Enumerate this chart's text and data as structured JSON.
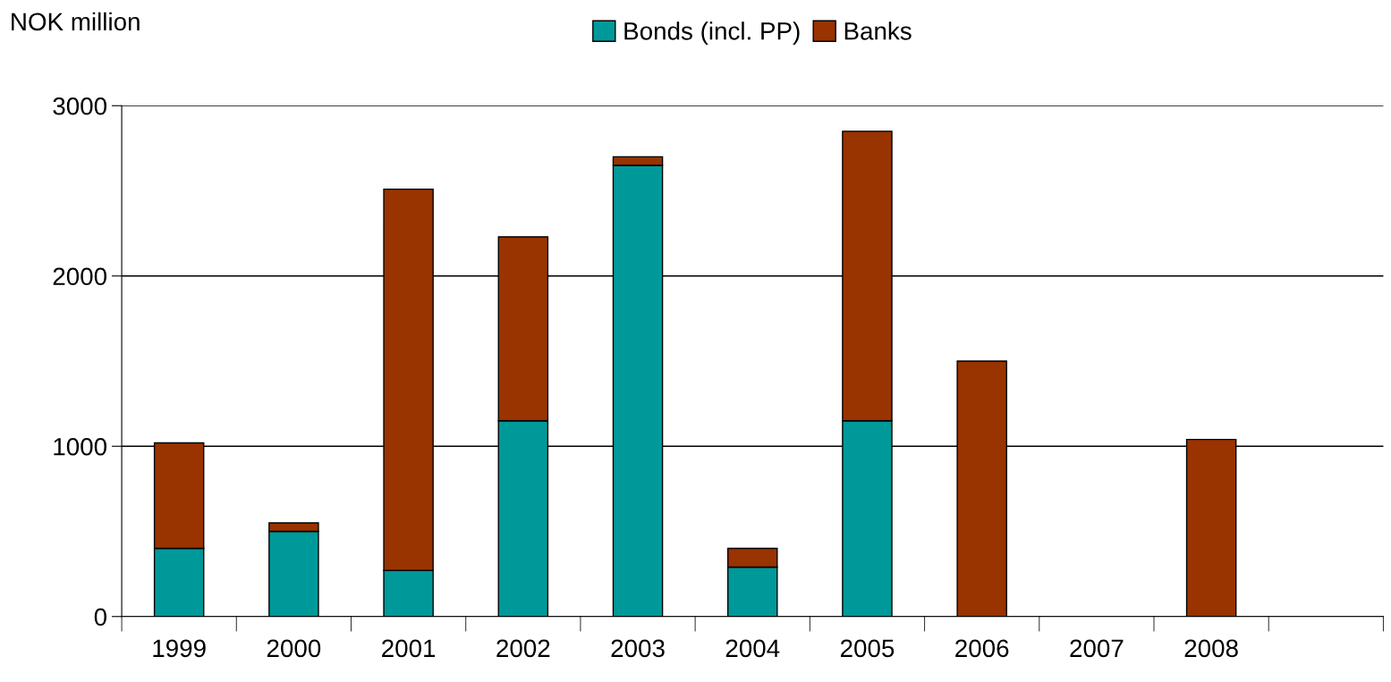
{
  "chart_data": {
    "type": "bar",
    "ylabel": "NOK million",
    "stacked": true,
    "categories": [
      "1999",
      "2000",
      "2001",
      "2002",
      "2003",
      "2004",
      "2005",
      "2006",
      "2007",
      "2008",
      null
    ],
    "series": [
      {
        "name": "Bonds (incl. PP)",
        "color": "#009999",
        "values": [
          400,
          500,
          270,
          1150,
          2650,
          290,
          1150,
          null,
          null,
          null,
          null
        ]
      },
      {
        "name": "Banks",
        "color": "#993300",
        "values": [
          620,
          50,
          2240,
          1080,
          50,
          110,
          1700,
          1500,
          null,
          1040,
          null
        ]
      }
    ],
    "ylim": [
      0,
      3000
    ],
    "yticks": [
      0,
      1000,
      2000,
      3000
    ],
    "grid": "y",
    "legend": "top"
  }
}
